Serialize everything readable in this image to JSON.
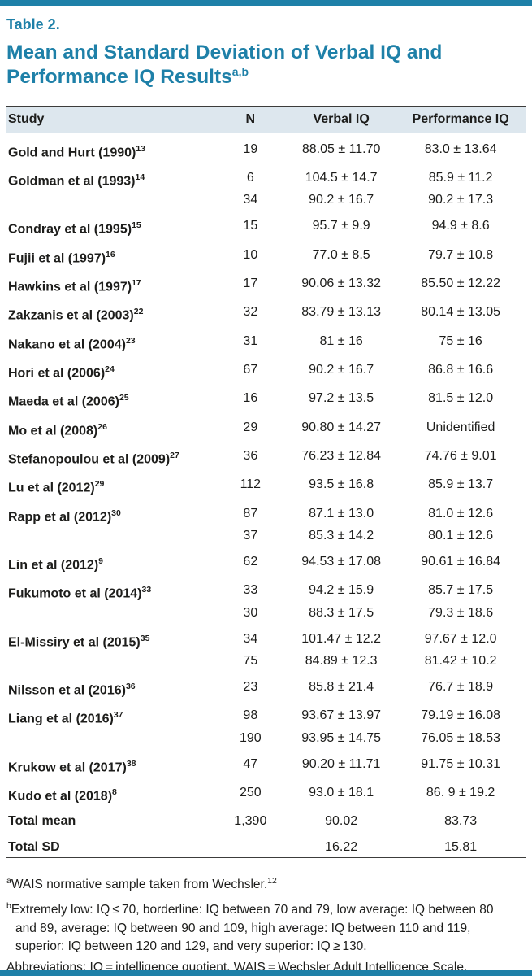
{
  "accent_color": "#1e80a8",
  "header_bg_color": "#dde7ee",
  "header": {
    "table_label": "Table 2.",
    "title": "Mean and Standard Deviation of Verbal IQ and Performance IQ Results",
    "title_sup": "a,b"
  },
  "table": {
    "columns": [
      "Study",
      "N",
      "Verbal IQ",
      "Performance IQ"
    ],
    "rows": [
      {
        "study": "Gold and Hurt (1990)",
        "ref": "13",
        "entries": [
          [
            "19",
            "88.05 ± 11.70",
            "83.0 ± 13.64"
          ]
        ]
      },
      {
        "study": "Goldman et al (1993)",
        "ref": "14",
        "entries": [
          [
            "6",
            "104.5 ± 14.7",
            "85.9 ± 11.2"
          ],
          [
            "34",
            "90.2 ± 16.7",
            "90.2 ± 17.3"
          ]
        ]
      },
      {
        "study": "Condray et al (1995)",
        "ref": "15",
        "entries": [
          [
            "15",
            "95.7 ± 9.9",
            "94.9 ± 8.6"
          ]
        ]
      },
      {
        "study": "Fujii et al (1997)",
        "ref": "16",
        "entries": [
          [
            "10",
            "77.0 ± 8.5",
            "79.7 ± 10.8"
          ]
        ]
      },
      {
        "study": "Hawkins et al (1997)",
        "ref": "17",
        "entries": [
          [
            "17",
            "90.06 ± 13.32",
            "85.50 ± 12.22"
          ]
        ]
      },
      {
        "study": "Zakzanis et al (2003)",
        "ref": "22",
        "entries": [
          [
            "32",
            "83.79 ± 13.13",
            "80.14 ± 13.05"
          ]
        ]
      },
      {
        "study": "Nakano et al (2004)",
        "ref": "23",
        "entries": [
          [
            "31",
            "81 ± 16",
            "75 ± 16"
          ]
        ]
      },
      {
        "study": "Hori et al (2006)",
        "ref": "24",
        "entries": [
          [
            "67",
            "90.2 ± 16.7",
            "86.8 ± 16.6"
          ]
        ]
      },
      {
        "study": "Maeda et al (2006)",
        "ref": "25",
        "entries": [
          [
            "16",
            "97.2 ± 13.5",
            "81.5 ± 12.0"
          ]
        ]
      },
      {
        "study": "Mo et al (2008)",
        "ref": "26",
        "entries": [
          [
            "29",
            "90.80 ± 14.27",
            "Unidentified"
          ]
        ]
      },
      {
        "study": "Stefanopoulou et al (2009)",
        "ref": "27",
        "entries": [
          [
            "36",
            "76.23 ± 12.84",
            "74.76 ± 9.01"
          ]
        ]
      },
      {
        "study": "Lu et al (2012)",
        "ref": "29",
        "entries": [
          [
            "112",
            "93.5 ± 16.8",
            "85.9 ± 13.7"
          ]
        ]
      },
      {
        "study": "Rapp et al (2012)",
        "ref": "30",
        "entries": [
          [
            "87",
            "87.1 ± 13.0",
            "81.0 ± 12.6"
          ],
          [
            "37",
            "85.3 ± 14.2",
            "80.1 ± 12.6"
          ]
        ]
      },
      {
        "study": "Lin et al (2012)",
        "ref": "9",
        "entries": [
          [
            "62",
            "94.53 ± 17.08",
            "90.61 ± 16.84"
          ]
        ]
      },
      {
        "study": "Fukumoto et al (2014)",
        "ref": "33",
        "entries": [
          [
            "33",
            "94.2 ± 15.9",
            "85.7 ± 17.5"
          ],
          [
            "30",
            "88.3 ± 17.5",
            "79.3 ± 18.6"
          ]
        ]
      },
      {
        "study": "El-Missiry et al (2015)",
        "ref": "35",
        "entries": [
          [
            "34",
            "101.47 ± 12.2",
            "97.67 ± 12.0"
          ],
          [
            "75",
            "84.89 ± 12.3",
            "81.42 ± 10.2"
          ]
        ]
      },
      {
        "study": "Nilsson et al (2016)",
        "ref": "36",
        "entries": [
          [
            "23",
            "85.8 ± 21.4",
            "76.7 ± 18.9"
          ]
        ]
      },
      {
        "study": "Liang et al (2016)",
        "ref": "37",
        "entries": [
          [
            "98",
            "93.67 ± 13.97",
            "79.19 ± 16.08"
          ],
          [
            "190",
            "93.95 ± 14.75",
            "76.05 ± 18.53"
          ]
        ]
      },
      {
        "study": "Krukow et al (2017)",
        "ref": "38",
        "entries": [
          [
            "47",
            "90.20 ± 11.71",
            "91.75 ± 10.31"
          ]
        ]
      },
      {
        "study": "Kudo et al (2018)",
        "ref": "8",
        "entries": [
          [
            "250",
            "93.0 ± 18.1",
            "86. 9 ± 19.2"
          ]
        ]
      },
      {
        "study": "Total mean",
        "ref": "",
        "entries": [
          [
            "1,390",
            "90.02",
            "83.73"
          ]
        ]
      },
      {
        "study": "Total SD",
        "ref": "",
        "entries": [
          [
            "",
            "16.22",
            "15.81"
          ]
        ]
      }
    ]
  },
  "footnotes": [
    {
      "sup": "a",
      "text": "WAIS normative sample taken from Wechsler.",
      "trailing_sup": "12"
    },
    {
      "sup": "b",
      "text": "Extremely low: IQ ≤ 70, borderline: IQ between 70 and 79, low average: IQ between 80 and 89, average: IQ between 90 and 109, high average: IQ between 110 and 119, superior: IQ between 120 and 129, and very superior: IQ ≥ 130.",
      "trailing_sup": ""
    },
    {
      "sup": "",
      "text": "Abbreviations: IQ = intelligence quotient, WAIS = Wechsler Adult Intelligence Scale.",
      "trailing_sup": ""
    }
  ]
}
